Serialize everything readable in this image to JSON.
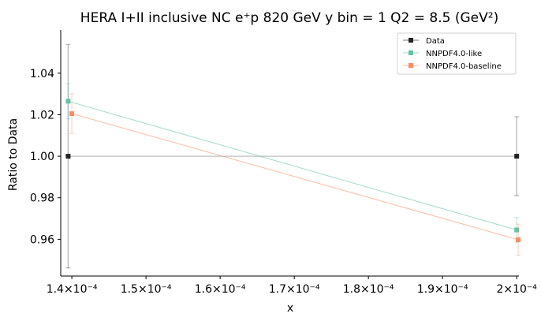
{
  "chart_data": {
    "type": "line",
    "title": "HERA I+II inclusive NC e⁺p 820 GeV y bin = 1 Q2 = 8.5 (GeV²)",
    "xlabel": "x",
    "ylabel": "Ratio to Data",
    "xlim": [
      0.0001385,
      0.0002003
    ],
    "ylim": [
      0.9423,
      1.0608
    ],
    "x_tick_values": [
      0.00014,
      0.00015,
      0.00016,
      0.00017,
      0.00018,
      0.00019,
      0.0002
    ],
    "x_tick_labels": [
      "1.4×10⁻⁴",
      "1.5×10⁻⁴",
      "1.6×10⁻⁴",
      "1.7×10⁻⁴",
      "1.8×10⁻⁴",
      "1.9×10⁻⁴",
      "2×10⁻⁴"
    ],
    "y_tick_values": [
      0.96,
      0.98,
      1.0,
      1.02,
      1.04
    ],
    "y_tick_labels": [
      "0.96",
      "0.98",
      "1.00",
      "1.02",
      "1.04"
    ],
    "grid": false,
    "legend_position": "top-right",
    "series": [
      {
        "name": "Data",
        "color": "#222222",
        "x": [
          0.0001395,
          0.0002
        ],
        "y": [
          1.0,
          1.0
        ],
        "err": [
          0.0538,
          0.019
        ]
      },
      {
        "name": "NNPDF4.0-like",
        "color": "#66c2a5",
        "x": [
          0.0001395,
          0.0002
        ],
        "y": [
          1.0265,
          0.9645
        ],
        "err": [
          0.0085,
          0.006
        ]
      },
      {
        "name": "NNPDF4.0-baseline",
        "color": "#fc8d62",
        "x": [
          0.00014,
          0.0002002
        ],
        "y": [
          1.0205,
          0.9598
        ],
        "err": [
          0.0095,
          0.0075
        ]
      }
    ]
  }
}
